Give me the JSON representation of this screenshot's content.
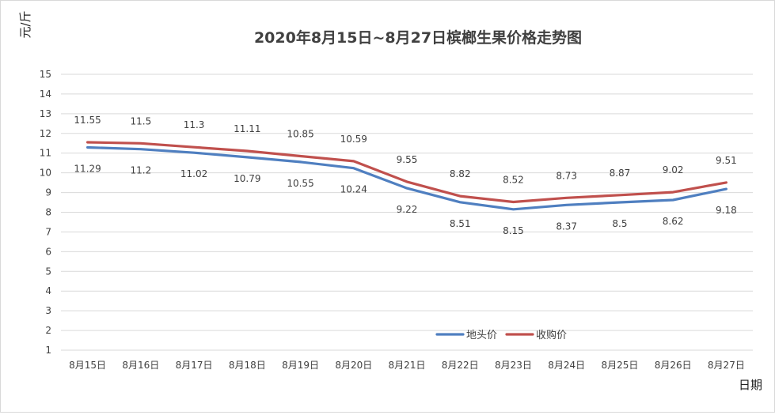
{
  "chart_data": {
    "type": "line",
    "title": "2020年8月15日~8月27日槟榔生果价格走势图",
    "ylabel": "元/斤",
    "xlabel": "日期",
    "ylim": [
      1,
      15
    ],
    "yticks": [
      1,
      2,
      3,
      4,
      5,
      6,
      7,
      8,
      9,
      10,
      11,
      12,
      13,
      14,
      15
    ],
    "grid": true,
    "legend": "bottom-right inside plot",
    "categories": [
      "8月15日",
      "8月16日",
      "8月17日",
      "8月18日",
      "8月19日",
      "8月20日",
      "8月21日",
      "8月22日",
      "8月23日",
      "8月24日",
      "8月25日",
      "8月26日",
      "8月27日"
    ],
    "series": [
      {
        "name": "地头价",
        "color": "#4f7fc0",
        "values": [
          11.29,
          11.2,
          11.02,
          10.79,
          10.55,
          10.24,
          9.22,
          8.51,
          8.15,
          8.37,
          8.5,
          8.62,
          9.18
        ]
      },
      {
        "name": "收购价",
        "color": "#c0504d",
        "values": [
          11.55,
          11.5,
          11.3,
          11.11,
          10.85,
          10.59,
          9.55,
          8.82,
          8.52,
          8.73,
          8.87,
          9.02,
          9.51
        ]
      }
    ]
  }
}
